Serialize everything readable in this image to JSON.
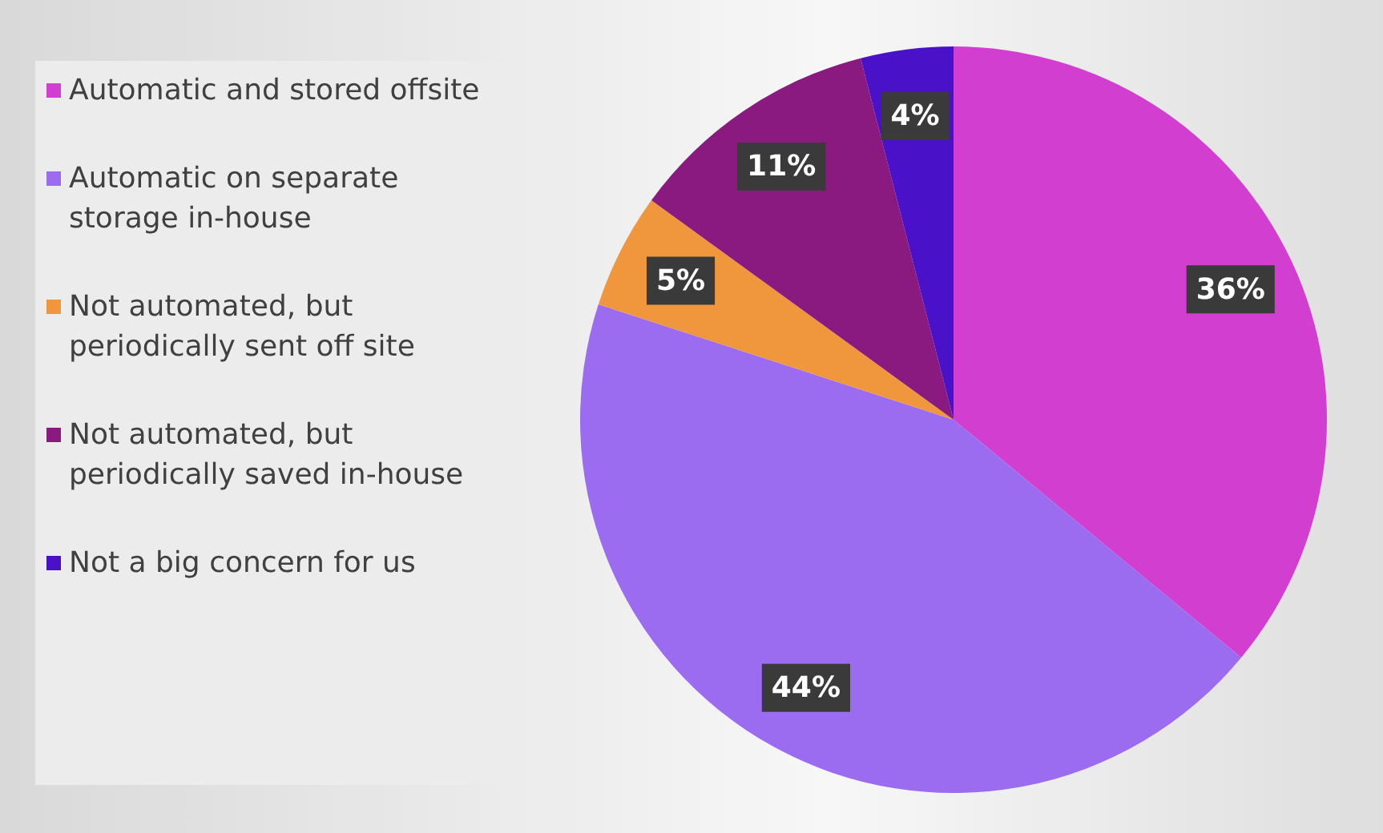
{
  "chart_data": {
    "type": "pie",
    "categories": [
      "Automatic and stored offsite",
      "Automatic on separate storage in-house",
      "Not automated, but periodically sent off site",
      "Not automated, but periodically saved in-house",
      "Not a big concern for us"
    ],
    "values": [
      36,
      44,
      5,
      11,
      4
    ],
    "colors": [
      "#d23fd0",
      "#9c6cf0",
      "#f0963c",
      "#8a1a80",
      "#4a12c8"
    ],
    "value_labels": [
      "36%",
      "44%",
      "5%",
      "11%",
      "4%"
    ],
    "legend": "left"
  }
}
